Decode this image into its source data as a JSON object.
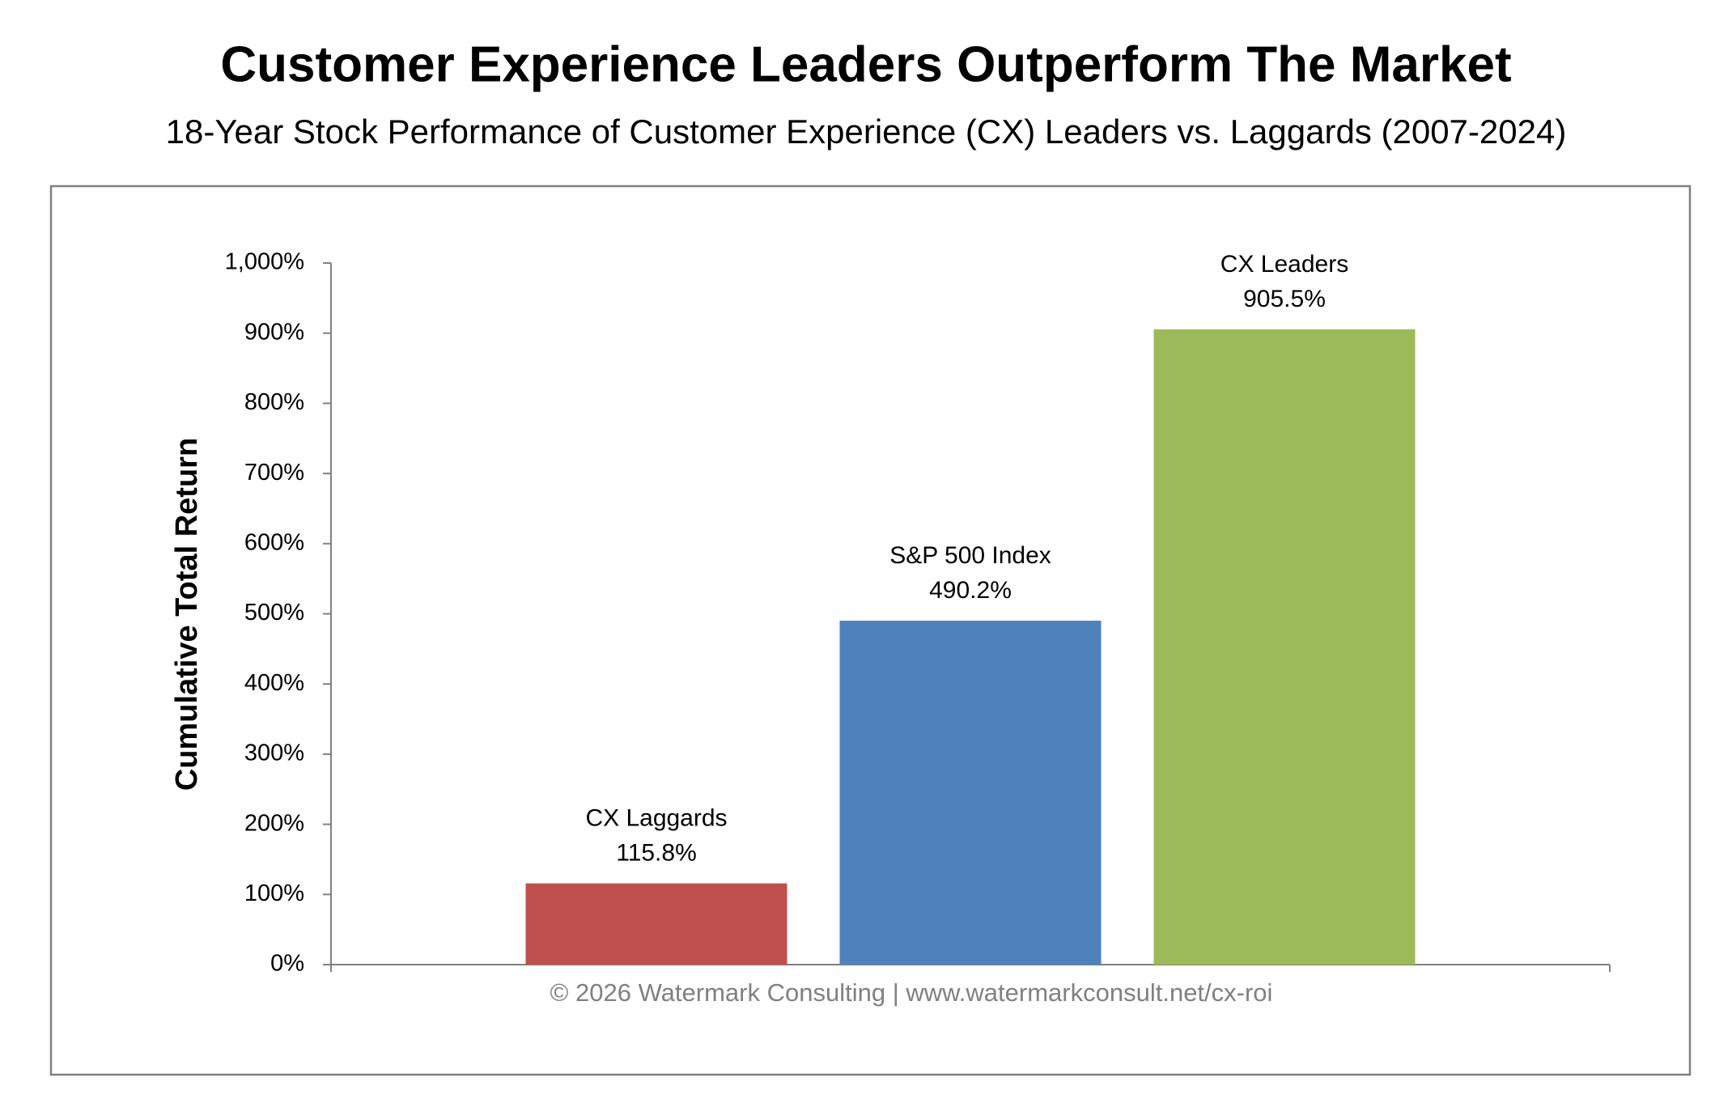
{
  "chart_data": {
    "type": "bar",
    "title": "Customer Experience Leaders Outperform The Market",
    "subtitle": "18-Year Stock Performance of Customer Experience (CX) Leaders vs. Laggards (2007-2024)",
    "y_label": "Cumulative Total Return",
    "annotation": "© 2026 Watermark Consulting | www.watermarkconsult.net/cx-roi",
    "categories": [
      "CX Laggards",
      "S&P 500 Index",
      "CX Leaders"
    ],
    "values": [
      115.8,
      490.2,
      905.5
    ],
    "value_labels": [
      "115.8%",
      "490.2%",
      "905.5%"
    ],
    "colors": [
      "#c0504d",
      "#4f81bd",
      "#9bbb59"
    ],
    "ylim": [
      0,
      1000
    ],
    "yticks": [
      {
        "value": 0,
        "label": "0%"
      },
      {
        "value": 100,
        "label": "100%"
      },
      {
        "value": 200,
        "label": "200%"
      },
      {
        "value": 300,
        "label": "300%"
      },
      {
        "value": 400,
        "label": "400%"
      },
      {
        "value": 500,
        "label": "500%"
      },
      {
        "value": 600,
        "label": "600%"
      },
      {
        "value": 700,
        "label": "700%"
      },
      {
        "value": 800,
        "label": "800%"
      },
      {
        "value": 900,
        "label": "900%"
      },
      {
        "value": 1000,
        "label": "1,000%"
      }
    ],
    "grid": false
  }
}
